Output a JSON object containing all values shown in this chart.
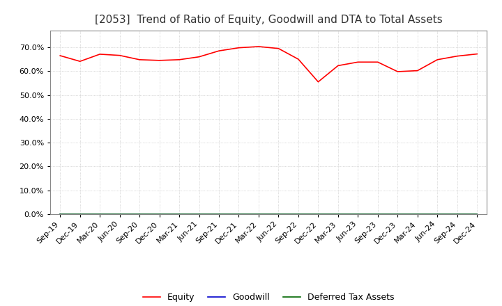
{
  "title": "[2053]  Trend of Ratio of Equity, Goodwill and DTA to Total Assets",
  "title_fontsize": 11,
  "background_color": "#ffffff",
  "grid_color": "#bbbbbb",
  "xlabels": [
    "Sep-19",
    "Dec-19",
    "Mar-20",
    "Jun-20",
    "Sep-20",
    "Dec-20",
    "Mar-21",
    "Jun-21",
    "Sep-21",
    "Dec-21",
    "Mar-22",
    "Jun-22",
    "Sep-22",
    "Dec-22",
    "Mar-23",
    "Jun-23",
    "Sep-23",
    "Dec-23",
    "Mar-24",
    "Jun-24",
    "Sep-24",
    "Dec-24"
  ],
  "equity": [
    0.665,
    0.641,
    0.671,
    0.666,
    0.648,
    0.645,
    0.648,
    0.66,
    0.685,
    0.698,
    0.703,
    0.695,
    0.65,
    0.555,
    0.623,
    0.638,
    0.638,
    0.598,
    0.602,
    0.648,
    0.663,
    0.672
  ],
  "goodwill": [
    0.0,
    0.0,
    0.0,
    0.0,
    0.0,
    0.0,
    0.0,
    0.0,
    0.0,
    0.0,
    0.0,
    0.0,
    0.0,
    0.0,
    0.0,
    0.0,
    0.0,
    0.0,
    0.0,
    0.0,
    0.0,
    0.0
  ],
  "dta": [
    0.0,
    0.0,
    0.0,
    0.0,
    0.0,
    0.0,
    0.0,
    0.0,
    0.0,
    0.0,
    0.0,
    0.0,
    0.0,
    0.0,
    0.0,
    0.0,
    0.0,
    0.0,
    0.0,
    0.0,
    0.0,
    0.0
  ],
  "equity_color": "#ff0000",
  "goodwill_color": "#0000cc",
  "dta_color": "#006600",
  "ylim": [
    0.0,
    0.77
  ],
  "yticks": [
    0.0,
    0.1,
    0.2,
    0.3,
    0.4,
    0.5,
    0.6,
    0.7
  ],
  "legend_labels": [
    "Equity",
    "Goodwill",
    "Deferred Tax Assets"
  ]
}
